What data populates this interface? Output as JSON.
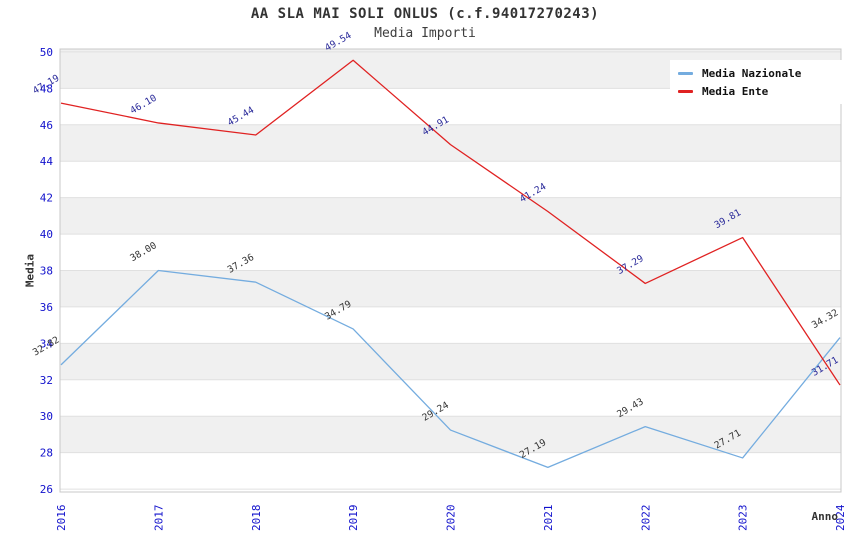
{
  "header": {
    "title": "AA SLA MAI SOLI ONLUS (c.f.94017270243)",
    "subtitle": "Media Importi"
  },
  "chart_data": {
    "type": "line",
    "title": "AA SLA MAI SOLI ONLUS (c.f.94017270243)",
    "subtitle": "Media Importi",
    "xlabel": "Anno",
    "ylabel": "Media",
    "categories": [
      "2016",
      "2017",
      "2018",
      "2019",
      "2020",
      "2021",
      "2022",
      "2023",
      "2024"
    ],
    "series": [
      {
        "name": "Media Nazionale",
        "color": "#74acdf",
        "label_color": "#333333",
        "values": [
          32.82,
          38.0,
          37.36,
          34.79,
          29.24,
          27.19,
          29.43,
          27.71,
          34.32
        ]
      },
      {
        "name": "Media Ente",
        "color": "#e02222",
        "label_color": "#2a2a9a",
        "values": [
          47.19,
          46.1,
          45.44,
          49.54,
          44.91,
          41.24,
          37.29,
          39.81,
          31.71
        ]
      }
    ],
    "yticks": [
      26,
      28,
      30,
      32,
      34,
      36,
      38,
      40,
      42,
      44,
      46,
      48,
      50
    ],
    "ylim": [
      25.84,
      50.16
    ],
    "grid": "horizontal-bands",
    "legend_position": "top-right",
    "colors": {
      "tick_label": "#1111cc",
      "band": "#f0f0f0",
      "gridline": "#e0e0e0",
      "frame": "#c8c8c8"
    }
  }
}
